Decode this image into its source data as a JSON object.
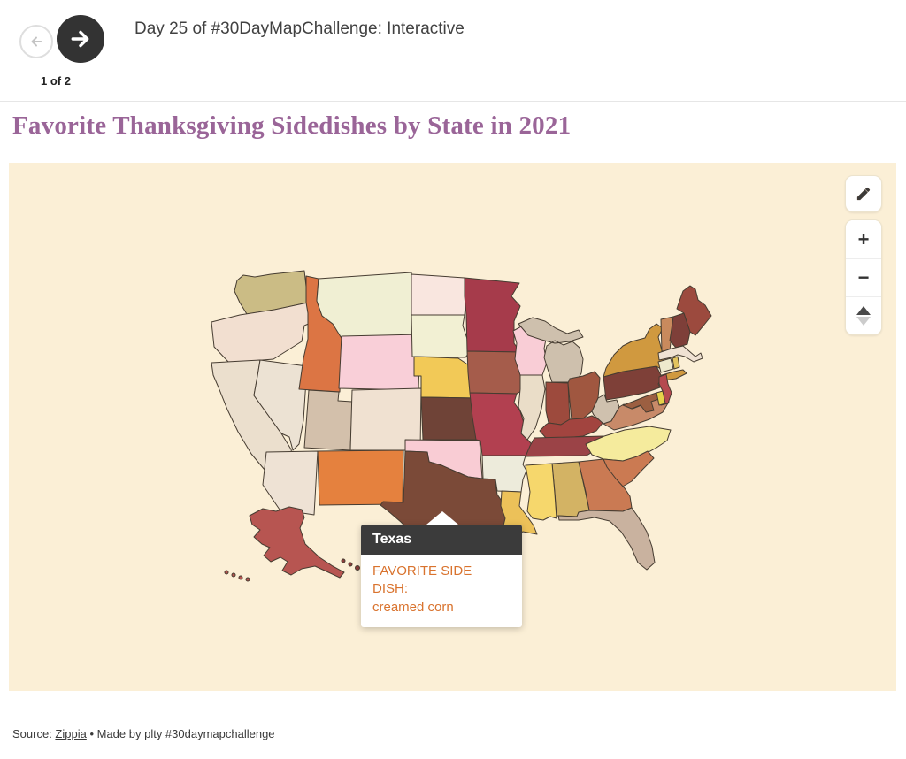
{
  "header": {
    "back_label": "previous graphic",
    "next_label": "next graphic",
    "title": "Day 25 of #30DayMapChallenge: Interactive",
    "pagination": "1 of 2"
  },
  "page_title": "Favorite Thanksgiving Sidedishes by State in 2021",
  "colors": {
    "page_title": "#9a6598",
    "map_background": "#fbefd6",
    "state_stroke": "#463c31",
    "tooltip_header_bg": "#3b3b3b",
    "tooltip_text": "#d9732e",
    "next_button_bg": "#333333"
  },
  "map": {
    "tooltip": {
      "state": "Texas",
      "line1": "FAVORITE SIDE DISH:",
      "line2": "creamed corn"
    },
    "controls": {
      "edit": "pencil",
      "zoom_in_label": "+",
      "zoom_out_label": "−",
      "pitch": "tilt-up-down"
    },
    "states": {
      "WA": {
        "name": "Washington",
        "color": "#cbbc85"
      },
      "OR": {
        "name": "Oregon",
        "color": "#f2dfd0"
      },
      "CA": {
        "name": "California",
        "color": "#ebdfcd"
      },
      "NV": {
        "name": "Nevada",
        "color": "#ece2d3"
      },
      "ID": {
        "name": "Idaho",
        "color": "#dc7544"
      },
      "MT": {
        "name": "Montana",
        "color": "#f0efd3"
      },
      "WY": {
        "name": "Wyoming",
        "color": "#f9cfd8"
      },
      "UT": {
        "name": "Utah",
        "color": "#d3c0ab"
      },
      "AZ": {
        "name": "Arizona",
        "color": "#eee2d4"
      },
      "CO": {
        "name": "Colorado",
        "color": "#f0e1d1"
      },
      "NM": {
        "name": "New Mexico",
        "color": "#e5813e"
      },
      "ND": {
        "name": "North Dakota",
        "color": "#f9e6df"
      },
      "SD": {
        "name": "South Dakota",
        "color": "#f2f0d3"
      },
      "NE": {
        "name": "Nebraska",
        "color": "#f2c957"
      },
      "KS": {
        "name": "Kansas",
        "color": "#6f4337"
      },
      "OK": {
        "name": "Oklahoma",
        "color": "#f9ccd4"
      },
      "TX": {
        "name": "Texas",
        "color": "#7b4a38"
      },
      "MN": {
        "name": "Minnesota",
        "color": "#a63b4b"
      },
      "IA": {
        "name": "Iowa",
        "color": "#a55c4b"
      },
      "MO": {
        "name": "Missouri",
        "color": "#b24050"
      },
      "AR": {
        "name": "Arkansas",
        "color": "#edebdb"
      },
      "LA": {
        "name": "Louisiana",
        "color": "#ecc159"
      },
      "WI": {
        "name": "Wisconsin",
        "color": "#f9cdd6"
      },
      "IL": {
        "name": "Illinois",
        "color": "#eaddc8"
      },
      "MS": {
        "name": "Mississippi",
        "color": "#f6d76c"
      },
      "MI": {
        "name": "Michigan",
        "color": "#cec0ad"
      },
      "IN": {
        "name": "Indiana",
        "color": "#9d4a3d"
      },
      "OH": {
        "name": "Ohio",
        "color": "#a05740"
      },
      "KY": {
        "name": "Kentucky",
        "color": "#a2443f"
      },
      "TN": {
        "name": "Tennessee",
        "color": "#9b4347"
      },
      "AL": {
        "name": "Alabama",
        "color": "#d3b364"
      },
      "GA": {
        "name": "Georgia",
        "color": "#ca7a53"
      },
      "FL": {
        "name": "Florida",
        "color": "#c9b29f"
      },
      "SC": {
        "name": "South Carolina",
        "color": "#cb7a52"
      },
      "NC": {
        "name": "North Carolina",
        "color": "#f5eb9d"
      },
      "VA": {
        "name": "Virginia",
        "color": "#c88a69"
      },
      "WV": {
        "name": "West Virginia",
        "color": "#cfc1ae"
      },
      "MD": {
        "name": "Maryland",
        "color": "#9c5f41"
      },
      "DE": {
        "name": "Delaware",
        "color": "#e6d24b"
      },
      "PA": {
        "name": "Pennsylvania",
        "color": "#7e4038"
      },
      "NJ": {
        "name": "New Jersey",
        "color": "#b5494f"
      },
      "NY": {
        "name": "New York",
        "color": "#d0993f"
      },
      "CT": {
        "name": "Connecticut",
        "color": "#eeeacd"
      },
      "RI": {
        "name": "Rhode Island",
        "color": "#e3c45f"
      },
      "MA": {
        "name": "Massachusetts",
        "color": "#f0e2d3"
      },
      "VT": {
        "name": "Vermont",
        "color": "#c98a5d"
      },
      "NH": {
        "name": "New Hampshire",
        "color": "#7e3f39"
      },
      "ME": {
        "name": "Maine",
        "color": "#9c4a3e"
      },
      "AK": {
        "name": "Alaska",
        "color": "#b75551"
      },
      "HI": {
        "name": "Hawaii",
        "color": "#8c3d3b"
      }
    }
  },
  "footer": {
    "prefix": "Source: ",
    "link": "Zippia",
    "suffix": " • Made by plty #30daymapchallenge"
  }
}
